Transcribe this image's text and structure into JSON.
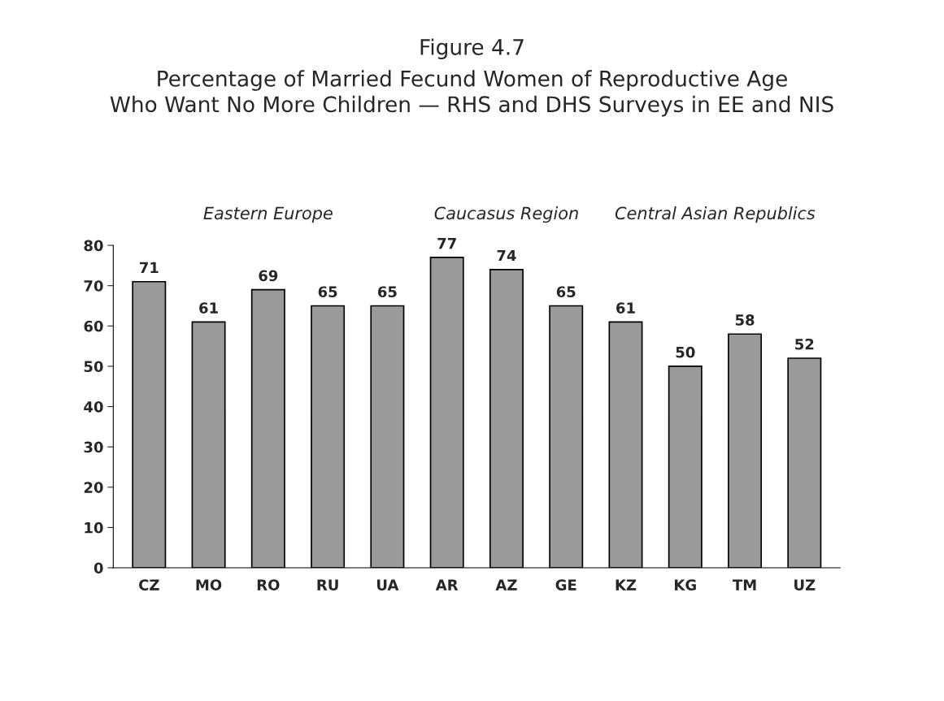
{
  "chart_data": {
    "type": "bar",
    "title": "Figure 4.7",
    "subtitle": "Percentage of Married Fecund Women of Reproductive Age\nWho Want No More Children — RHS and DHS Surveys in EE and NIS",
    "categories": [
      "CZ",
      "MO",
      "RO",
      "RU",
      "UA",
      "AR",
      "AZ",
      "GE",
      "KZ",
      "KG",
      "TM",
      "UZ"
    ],
    "values": [
      71,
      61,
      69,
      65,
      65,
      77,
      74,
      65,
      61,
      50,
      58,
      52
    ],
    "color": "#9a9a9a",
    "annotations": [
      "Eastern Europe",
      "Caucasus Region",
      "Central Asian Republics"
    ],
    "ylim": [
      0,
      80
    ],
    "yticks": [
      0,
      10,
      20,
      30,
      40,
      50,
      60,
      70,
      80
    ],
    "data_labels": true,
    "grid": false,
    "legend": false
  }
}
